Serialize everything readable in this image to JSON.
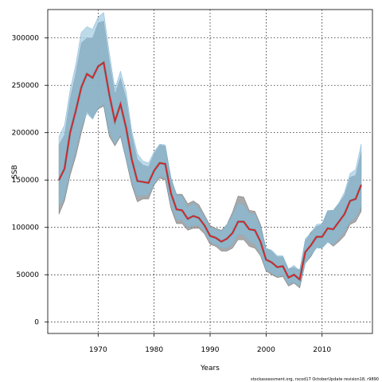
{
  "chart_data": {
    "type": "line",
    "xlabel": "Years",
    "ylabel": "SSB",
    "footer_note": "stockassessment.org, rscod17 OctoberUpdate revision18, r9890",
    "xlim": [
      1961,
      2019
    ],
    "ylim": [
      -12000,
      330000
    ],
    "x_ticks": [
      1970,
      1980,
      1990,
      2000,
      2010
    ],
    "y_ticks": [
      0,
      50000,
      100000,
      150000,
      200000,
      250000,
      300000
    ],
    "grid": true,
    "colors": {
      "estimate_line": "#e41a1c",
      "band_blue": "#a6cee3",
      "band_grey": "#8c8c8c",
      "overlap": "#7fa9bf",
      "grid": "#000000"
    },
    "x": [
      1963,
      1964,
      1965,
      1966,
      1967,
      1968,
      1969,
      1970,
      1971,
      1972,
      1973,
      1974,
      1975,
      1976,
      1977,
      1978,
      1979,
      1980,
      1981,
      1982,
      1983,
      1984,
      1985,
      1986,
      1987,
      1988,
      1989,
      1990,
      1991,
      1992,
      1993,
      1994,
      1995,
      1996,
      1997,
      1998,
      1999,
      2000,
      2001,
      2002,
      2003,
      2004,
      2005,
      2006,
      2007,
      2008,
      2009,
      2010,
      2011,
      2012,
      2013,
      2014,
      2015,
      2016,
      2017
    ],
    "series": [
      {
        "name": "",
        "role": "estimate",
        "values": [
          150000,
          162000,
          200000,
          223000,
          248000,
          262000,
          258000,
          270000,
          274000,
          240000,
          212000,
          230000,
          205000,
          172000,
          149000,
          148000,
          147000,
          160000,
          168000,
          167000,
          136000,
          119000,
          118000,
          109000,
          112000,
          110000,
          102000,
          91000,
          89000,
          85000,
          88000,
          94000,
          106000,
          106000,
          98000,
          97000,
          85000,
          66000,
          63000,
          58000,
          59000,
          47000,
          50000,
          45000,
          74000,
          81000,
          90000,
          90000,
          99000,
          98000,
          106000,
          114000,
          128000,
          130000,
          145000
        ]
      },
      {
        "name": "",
        "role": "ci_blue",
        "lower": [
          122000,
          132000,
          160000,
          180000,
          206000,
          220000,
          214000,
          226000,
          230000,
          200000,
          188000,
          198000,
          172000,
          148000,
          132000,
          134000,
          134000,
          146000,
          154000,
          153000,
          124000,
          108000,
          108000,
          100000,
          102000,
          102000,
          96000,
          85000,
          82000,
          78000,
          78000,
          82000,
          92000,
          92000,
          85000,
          82000,
          72000,
          55000,
          52000,
          48000,
          50000,
          40000,
          42000,
          38000,
          62000,
          70000,
          78000,
          78000,
          84000,
          82000,
          88000,
          95000,
          106000,
          110000,
          122000
        ],
        "upper": [
          196000,
          208000,
          245000,
          272000,
          306000,
          312000,
          309000,
          322000,
          327000,
          284000,
          246000,
          265000,
          243000,
          202000,
          178000,
          170000,
          168000,
          180000,
          188000,
          187000,
          153000,
          134000,
          133000,
          121000,
          126000,
          120000,
          111000,
          100000,
          98000,
          96000,
          103000,
          113000,
          126000,
          124000,
          115000,
          114000,
          101000,
          78000,
          76000,
          70000,
          70000,
          56000,
          60000,
          54000,
          88000,
          94000,
          103000,
          104000,
          118000,
          118000,
          126000,
          137000,
          157000,
          161000,
          188000
        ]
      },
      {
        "name": "",
        "role": "ci_grey",
        "lower": [
          114000,
          128000,
          155000,
          175000,
          200000,
          222000,
          215000,
          225000,
          228000,
          196000,
          186000,
          196000,
          171000,
          145000,
          127000,
          130000,
          130000,
          145000,
          152000,
          150000,
          120000,
          104000,
          104000,
          97000,
          99000,
          99000,
          93000,
          82000,
          80000,
          75000,
          75000,
          78000,
          87000,
          87000,
          80000,
          78000,
          70000,
          54000,
          50000,
          47000,
          48000,
          38000,
          41000,
          36000,
          62000,
          69000,
          79000,
          78000,
          85000,
          80000,
          85000,
          91000,
          103000,
          106000,
          117000
        ],
        "upper": [
          187000,
          198000,
          236000,
          263000,
          295000,
          300000,
          300000,
          316000,
          318000,
          276000,
          241000,
          258000,
          236000,
          198000,
          172000,
          166000,
          164000,
          178000,
          187000,
          186000,
          152000,
          135000,
          135000,
          125000,
          128000,
          124000,
          113000,
          102000,
          99000,
          97000,
          103000,
          116000,
          133000,
          132000,
          118000,
          117000,
          103000,
          78000,
          75000,
          69000,
          69000,
          56000,
          58000,
          55000,
          86000,
          95000,
          101000,
          103000,
          117000,
          118000,
          125000,
          134000,
          153000,
          155000,
          180000
        ]
      }
    ]
  }
}
